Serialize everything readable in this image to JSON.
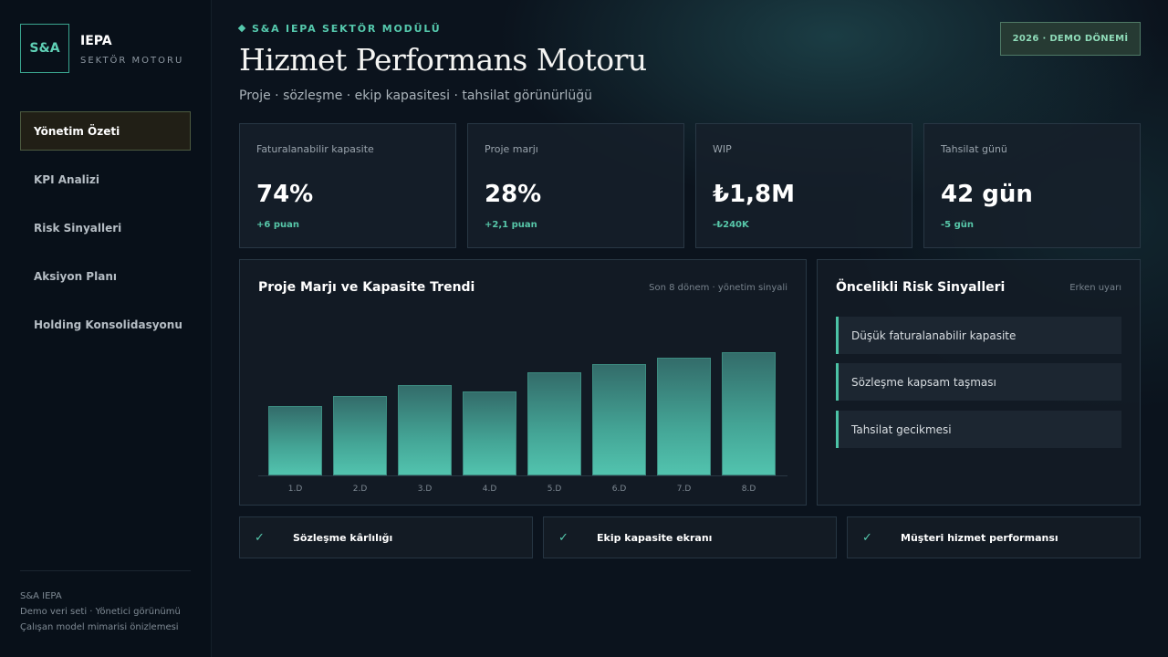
{
  "brand": {
    "logo": "S&A",
    "title": "IEPA",
    "subtitle": "SEKTÖR MOTORU"
  },
  "nav": [
    {
      "label": "Yönetim Özeti",
      "active": true
    },
    {
      "label": "KPI Analizi",
      "active": false
    },
    {
      "label": "Risk Sinyalleri",
      "active": false
    },
    {
      "label": "Aksiyon Planı",
      "active": false
    },
    {
      "label": "Holding Konsolidasyonu",
      "active": false
    }
  ],
  "footer": {
    "line1": "S&A IEPA",
    "line2": "Demo veri seti · Yönetici görünümü",
    "line3": "Çalışan model mimarisi önizlemesi"
  },
  "header": {
    "eyebrow": "S&A IEPA SEKTÖR MODÜLÜ",
    "title": "Hizmet Performans Motoru",
    "subtitle": "Proje · sözleşme · ekip kapasitesi · tahsilat görünürlüğü",
    "period_badge": "2026 · DEMO DÖNEMİ"
  },
  "kpis": [
    {
      "label": "Faturalanabilir kapasite",
      "value": "74%",
      "delta": "+6 puan"
    },
    {
      "label": "Proje marjı",
      "value": "28%",
      "delta": "+2,1 puan"
    },
    {
      "label": "WIP",
      "value": "₺1,8M",
      "delta": "-₺240K"
    },
    {
      "label": "Tahsilat günü",
      "value": "42 gün",
      "delta": "-5 gün"
    }
  ],
  "trend_panel": {
    "title": "Proje Marjı ve Kapasite Trendi",
    "note": "Son 8 dönem · yönetim sinyali"
  },
  "chart_data": {
    "type": "bar",
    "categories": [
      "1.D",
      "2.D",
      "3.D",
      "4.D",
      "5.D",
      "6.D",
      "7.D",
      "8.D"
    ],
    "values": [
      56,
      64,
      73,
      68,
      83,
      90,
      95,
      99
    ],
    "ylim": [
      0,
      100
    ],
    "grid": false
  },
  "risk_panel": {
    "title": "Öncelikli Risk Sinyalleri",
    "note": "Erken uyarı",
    "items": [
      "Düşük faturalanabilir kapasite",
      "Sözleşme kapsam taşması",
      "Tahsilat gecikmesi"
    ]
  },
  "checks": [
    {
      "icon": "✓",
      "label": "Sözleşme kârlılığı"
    },
    {
      "icon": "✓",
      "label": "Ekip kapasite ekranı"
    },
    {
      "icon": "✓",
      "label": "Müşteri hizmet performansı"
    }
  ],
  "colors": {
    "accent": "#55c9ad",
    "badge_bg": "#263a33",
    "active_nav_bg": "#211f16"
  }
}
